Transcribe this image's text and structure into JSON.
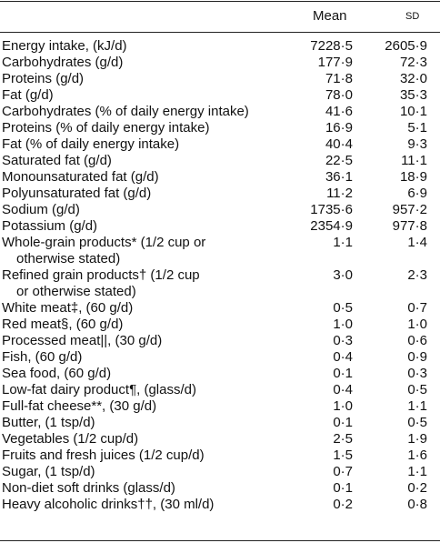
{
  "table": {
    "header": [
      "Mean",
      "SD"
    ],
    "rows": [
      {
        "label": [
          "Energy intake, (kJ/d)"
        ],
        "mean": "7228·5",
        "sd": "2605·9"
      },
      {
        "label": [
          "Carbohydrates (g/d)"
        ],
        "mean": "177·9",
        "sd": "72·3"
      },
      {
        "label": [
          "Proteins (g/d)"
        ],
        "mean": "71·8",
        "sd": "32·0"
      },
      {
        "label": [
          "Fat (g/d)"
        ],
        "mean": "78·0",
        "sd": "35·3"
      },
      {
        "label": [
          "Carbohydrates (% of daily energy intake)"
        ],
        "mean": "41·6",
        "sd": "10·1"
      },
      {
        "label": [
          "Proteins (% of daily energy intake)"
        ],
        "mean": "16·9",
        "sd": "5·1"
      },
      {
        "label": [
          "Fat (% of daily energy intake)"
        ],
        "mean": "40·4",
        "sd": "9·3"
      },
      {
        "label": [
          "Saturated fat (g/d)"
        ],
        "mean": "22·5",
        "sd": "11·1"
      },
      {
        "label": [
          "Monounsaturated fat (g/d)"
        ],
        "mean": "36·1",
        "sd": "18·9"
      },
      {
        "label": [
          "Polyunsaturated fat (g/d)"
        ],
        "mean": "11·2",
        "sd": "6·9"
      },
      {
        "label": [
          "Sodium (g/d)"
        ],
        "mean": "1735·6",
        "sd": "957·2"
      },
      {
        "label": [
          "Potassium (g/d)"
        ],
        "mean": "2354·9",
        "sd": "977·8"
      },
      {
        "label": [
          "Whole-grain products* (1/2 cup or",
          "otherwise stated)"
        ],
        "mean": "1·1",
        "sd": "1·4"
      },
      {
        "label": [
          "Refined grain products† (1/2 cup",
          "or otherwise stated)"
        ],
        "mean": "3·0",
        "sd": "2·3"
      },
      {
        "label": [
          "White meat‡, (60 g/d)"
        ],
        "mean": "0·5",
        "sd": "0·7"
      },
      {
        "label": [
          "Red meat§, (60 g/d)"
        ],
        "mean": "1·0",
        "sd": "1·0"
      },
      {
        "label": [
          "Processed meat||, (30 g/d)"
        ],
        "mean": "0·3",
        "sd": "0·6"
      },
      {
        "label": [
          "Fish, (60 g/d)"
        ],
        "mean": "0·4",
        "sd": "0·9"
      },
      {
        "label": [
          "Sea food, (60 g/d)"
        ],
        "mean": "0·1",
        "sd": "0·3"
      },
      {
        "label": [
          "Low-fat dairy product¶, (glass/d)"
        ],
        "mean": "0·4",
        "sd": "0·5"
      },
      {
        "label": [
          "Full-fat cheese**, (30 g/d)"
        ],
        "mean": "1·0",
        "sd": "1·1"
      },
      {
        "label": [
          "Butter, (1 tsp/d)"
        ],
        "mean": "0·1",
        "sd": "0·5"
      },
      {
        "label": [
          "Vegetables (1/2 cup/d)"
        ],
        "mean": "2·5",
        "sd": "1·9"
      },
      {
        "label": [
          "Fruits and fresh juices (1/2 cup/d)"
        ],
        "mean": "1·5",
        "sd": "1·6"
      },
      {
        "label": [
          "Sugar, (1 tsp/d)"
        ],
        "mean": "0·7",
        "sd": "1·1"
      },
      {
        "label": [
          "Non-diet soft drinks (glass/d)"
        ],
        "mean": "0·1",
        "sd": "0·2"
      },
      {
        "label": [
          "Heavy alcoholic drinks††, (30 ml/d)"
        ],
        "mean": "0·2",
        "sd": "0·8"
      }
    ]
  }
}
